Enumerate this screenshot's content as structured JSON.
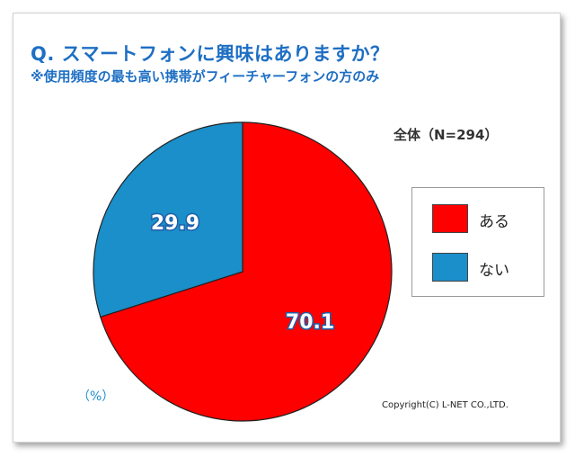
{
  "header": {
    "title": "Q. スマートフォンに興味はありますか？",
    "subtitle": "※使用頻度の最も高い携帯がフィーチャーフォンの方のみ"
  },
  "sample_label": "全体（N=294）",
  "unit_label": "（%）",
  "copyright": "Copyright(C) L-NET CO.,LTD.",
  "colors": {
    "title": "#1e6fc4",
    "aru": "#ff0000",
    "nai": "#1a8fc9"
  },
  "chart_data": {
    "type": "pie",
    "title": "Q. スマートフォンに興味はありますか？",
    "categories": [
      "ある",
      "ない"
    ],
    "values": [
      70.1,
      29.9
    ],
    "colors": [
      "#ff0000",
      "#1a8fc9"
    ],
    "value_labels": [
      "70.1",
      "29.9"
    ],
    "legend_placement": "right",
    "start": "top (12 o'clock)",
    "direction": "clockwise"
  }
}
